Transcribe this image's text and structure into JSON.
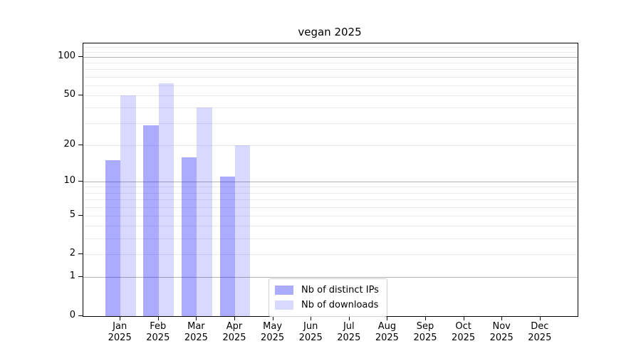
{
  "chart_data": {
    "type": "bar",
    "title": "vegan 2025",
    "categories": [
      "Jan 2025",
      "Feb 2025",
      "Mar 2025",
      "Apr 2025",
      "May 2025",
      "Jun 2025",
      "Jul 2025",
      "Aug 2025",
      "Sep 2025",
      "Oct 2025",
      "Nov 2025",
      "Dec 2025"
    ],
    "series": [
      {
        "name": "Nb of distinct IPs",
        "base_color": "#0000ff",
        "alpha": 0.33,
        "rendered_color": "#aaaaff",
        "values": [
          15,
          29,
          16,
          11,
          0,
          0,
          0,
          0,
          0,
          0,
          0,
          0
        ]
      },
      {
        "name": "Nb of downloads",
        "base_color": "#0000ff",
        "alpha": 0.15,
        "rendered_color": "#d9d9ff",
        "values": [
          50,
          62,
          40,
          20,
          0,
          0,
          0,
          0,
          0,
          0,
          0,
          0
        ]
      }
    ],
    "xlabel": "",
    "ylabel": "",
    "yscale": "log1p",
    "yticks": [
      0,
      1,
      2,
      5,
      10,
      20,
      50,
      100
    ],
    "ylim": [
      0,
      128
    ],
    "grid": true,
    "grid_major_values": [
      1,
      10,
      100
    ],
    "grid_minor_values": [
      2,
      3,
      4,
      5,
      6,
      7,
      8,
      9,
      20,
      30,
      40,
      50,
      60,
      70,
      80,
      90,
      110,
      120
    ],
    "legend_position": "lower center",
    "axis_color": "#000000",
    "major_grid_color": "#b4b4b4",
    "minor_grid_color": "#ebebeb"
  }
}
